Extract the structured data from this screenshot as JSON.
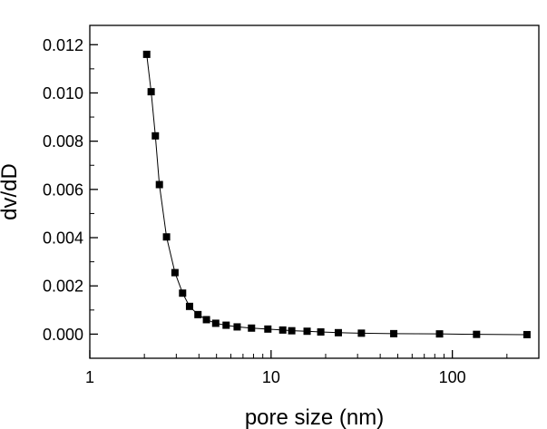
{
  "chart_data": {
    "type": "scatter",
    "title": "",
    "xlabel": "pore size (nm)",
    "ylabel": "dv/dD",
    "x_scale": "log",
    "xlim": [
      1,
      300
    ],
    "ylim": [
      -0.001,
      0.0128
    ],
    "x_ticks": [
      {
        "value": 1,
        "label": "1"
      },
      {
        "value": 10,
        "label": "10"
      },
      {
        "value": 100,
        "label": "100"
      }
    ],
    "y_ticks": [
      {
        "value": 0.0,
        "label": "0.000"
      },
      {
        "value": 0.002,
        "label": "0.002"
      },
      {
        "value": 0.004,
        "label": "0.004"
      },
      {
        "value": 0.006,
        "label": "0.006"
      },
      {
        "value": 0.008,
        "label": "0.008"
      },
      {
        "value": 0.01,
        "label": "0.010"
      },
      {
        "value": 0.012,
        "label": "0.012"
      }
    ],
    "grid": false,
    "legend": "none",
    "series": [
      {
        "marker": "square",
        "line": "solid",
        "color": "#000000",
        "points": [
          {
            "x": 2.06,
            "y": 0.0116
          },
          {
            "x": 2.18,
            "y": 0.01005
          },
          {
            "x": 2.3,
            "y": 0.00822
          },
          {
            "x": 2.42,
            "y": 0.0062
          },
          {
            "x": 2.65,
            "y": 0.00403
          },
          {
            "x": 2.95,
            "y": 0.00255
          },
          {
            "x": 3.25,
            "y": 0.0017
          },
          {
            "x": 3.55,
            "y": 0.00115
          },
          {
            "x": 3.95,
            "y": 0.00081
          },
          {
            "x": 4.4,
            "y": 0.0006
          },
          {
            "x": 4.95,
            "y": 0.00045
          },
          {
            "x": 5.65,
            "y": 0.00037
          },
          {
            "x": 6.5,
            "y": 0.0003
          },
          {
            "x": 7.8,
            "y": 0.00025
          },
          {
            "x": 9.6,
            "y": 0.00021
          },
          {
            "x": 11.6,
            "y": 0.00017
          },
          {
            "x": 13.0,
            "y": 0.00014
          },
          {
            "x": 15.8,
            "y": 0.00012
          },
          {
            "x": 18.8,
            "y": 9e-05
          },
          {
            "x": 23.5,
            "y": 6e-05
          },
          {
            "x": 31.5,
            "y": 4e-05
          },
          {
            "x": 47.5,
            "y": 2e-05
          },
          {
            "x": 85.0,
            "y": 1e-05
          },
          {
            "x": 136.0,
            "y": -1e-05
          },
          {
            "x": 258.0,
            "y": -2e-05
          }
        ]
      }
    ]
  }
}
